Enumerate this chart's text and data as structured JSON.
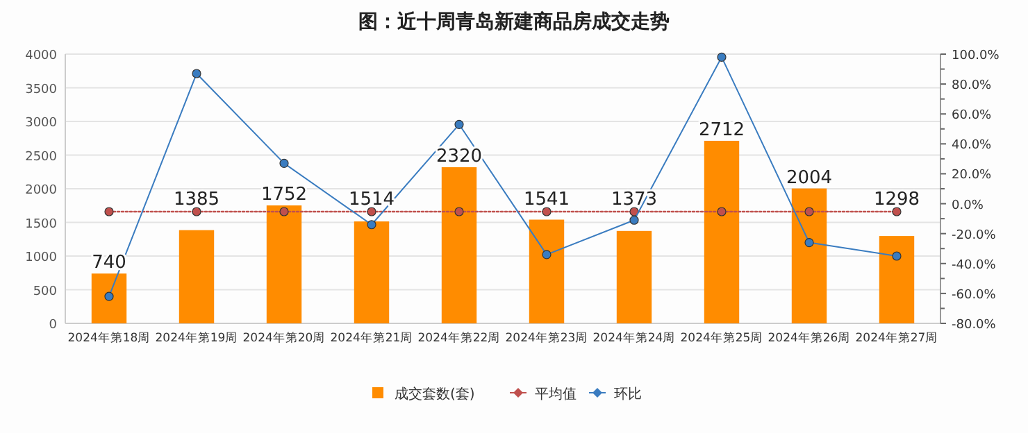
{
  "chart_data": {
    "type": "bar",
    "title": "图：近十周青岛新建商品房成交走势",
    "categories": [
      "2024年第18周",
      "2024年第19周",
      "2024年第20周",
      "2024年第21周",
      "2024年第22周",
      "2024年第23周",
      "2024年第24周",
      "2024年第25周",
      "2024年第26周",
      "2024年第27周"
    ],
    "series": [
      {
        "name": "成交套数(套)",
        "color": "#ff8c00",
        "data_labels": true,
        "values": [
          740,
          1385,
          1752,
          1514,
          2320,
          1541,
          1373,
          2712,
          2004,
          1298
        ]
      },
      {
        "name": "平均值",
        "type": "line",
        "color": "#c0504d",
        "line_style": "dotted",
        "marker": "circle",
        "values": [
          1660,
          1660,
          1660,
          1660,
          1660,
          1660,
          1660,
          1660,
          1660,
          1660
        ]
      },
      {
        "name": "环比",
        "type": "line",
        "axis": "y2",
        "color": "#3a7cc0",
        "line_style": "solid",
        "marker": "circle",
        "values": [
          -62,
          87,
          27,
          -14,
          53,
          -34,
          -11,
          98,
          -26,
          -35
        ]
      }
    ],
    "ylim": [
      0,
      4000
    ],
    "yticks": [
      0,
      500,
      1000,
      1500,
      2000,
      2500,
      3000,
      3500,
      4000
    ],
    "y2lim": [
      -80,
      100
    ],
    "y2ticks": [
      {
        "value": -80,
        "label": "-80.0%"
      },
      {
        "value": -70,
        "label": null
      },
      {
        "value": -60,
        "label": "-60.0%"
      },
      {
        "value": -50,
        "label": null
      },
      {
        "value": -40,
        "label": "-40.0%"
      },
      {
        "value": -30,
        "label": null
      },
      {
        "value": -20,
        "label": "-20.0%"
      },
      {
        "value": -10,
        "label": null
      },
      {
        "value": 0,
        "label": "0.0%"
      },
      {
        "value": 10,
        "label": null
      },
      {
        "value": 20,
        "label": "20.0%"
      },
      {
        "value": 30,
        "label": null
      },
      {
        "value": 40,
        "label": "40.0%"
      },
      {
        "value": 50,
        "label": null
      },
      {
        "value": 60,
        "label": "60.0%"
      },
      {
        "value": 70,
        "label": null
      },
      {
        "value": 80,
        "label": "80.0%"
      },
      {
        "value": 90,
        "label": null
      },
      {
        "value": 100,
        "label": "100.0%"
      }
    ],
    "grid": "y",
    "legend": "bottom"
  }
}
